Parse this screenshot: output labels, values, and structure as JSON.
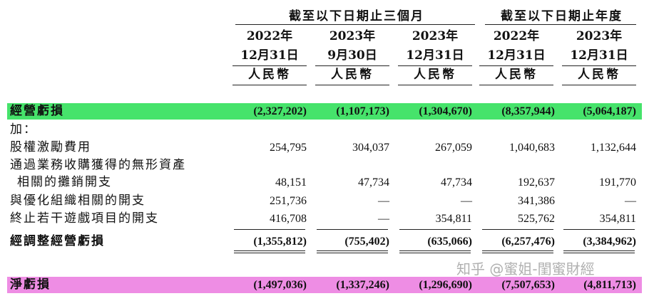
{
  "header": {
    "group_three_months": "截至以下日期止三個月",
    "group_year": "截至以下日期止年度",
    "columns": [
      {
        "year": "2022年",
        "date": "12月31日",
        "currency": "人民幣"
      },
      {
        "year": "2023年",
        "date": "9月30日",
        "currency": "人民幣"
      },
      {
        "year": "2023年",
        "date": "12月31日",
        "currency": "人民幣"
      },
      {
        "year": "2022年",
        "date": "12月31日",
        "currency": "人民幣"
      },
      {
        "year": "2023年",
        "date": "12月31日",
        "currency": "人民幣"
      }
    ]
  },
  "rows": [
    {
      "label": "經營虧損",
      "values": [
        "(2,327,202)",
        "(1,107,173)",
        "(1,304,670)",
        "(8,357,944)",
        "(5,064,187)"
      ]
    },
    {
      "label": "加：",
      "values": [
        "",
        "",
        "",
        "",
        ""
      ]
    },
    {
      "label": "股權激勵費用",
      "values": [
        "254,795",
        "304,037",
        "267,059",
        "1,040,683",
        "1,132,644"
      ]
    },
    {
      "label": "通過業務收購獲得的無形資產",
      "values": [
        "",
        "",
        "",
        "",
        ""
      ]
    },
    {
      "label": "相關的攤銷開支",
      "values": [
        "48,151",
        "47,734",
        "47,734",
        "192,637",
        "191,770"
      ]
    },
    {
      "label": "與優化組織相關的開支",
      "values": [
        "251,736",
        "—",
        "—",
        "341,386",
        "—"
      ]
    },
    {
      "label": "終止若干遊戲項目的開支",
      "values": [
        "416,708",
        "—",
        "354,811",
        "525,762",
        "354,811"
      ]
    },
    {
      "label": "經調整經營虧損",
      "values": [
        "(1,355,812)",
        "(755,402)",
        "(635,066)",
        "(6,257,476)",
        "(3,384,962)"
      ]
    },
    {
      "label": "淨虧損",
      "values": [
        "(1,497,036)",
        "(1,337,246)",
        "(1,296,690)",
        "(7,507,653)",
        "(4,811,713)"
      ]
    }
  ],
  "watermark": "知乎 @蜜姐-閨蜜財經",
  "colors": {
    "highlight_green": "#46e36b",
    "highlight_pink": "#ee8de4"
  }
}
